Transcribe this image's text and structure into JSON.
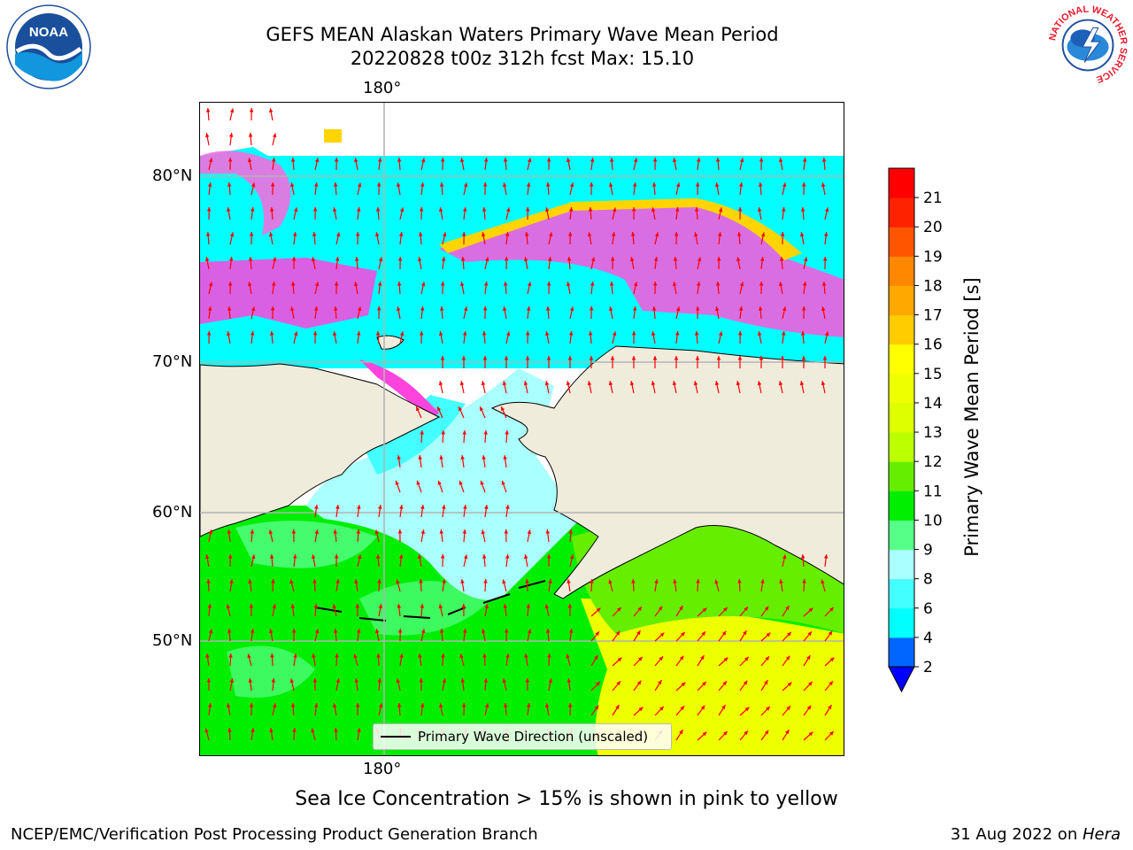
{
  "header": {
    "title_line1": "GEFS MEAN Alaskan Waters Primary Wave Mean Period",
    "title_line2": "20220828 t00z 312h fcst   Max: 15.10"
  },
  "map": {
    "lon_label_top": "180°",
    "lon_label_bottom": "180°",
    "lat_labels": [
      "80°N",
      "70°N",
      "60°N",
      "50°N"
    ],
    "legend_label": "Primary Wave Direction (unscaled)",
    "arrow_color": "#ff0000",
    "land_color": "#efecdc",
    "grid_color": "#b3b3b3"
  },
  "colorbar": {
    "title": "Primary Wave Mean Period [s]",
    "ticks": [
      "2",
      "4",
      "6",
      "8",
      "9",
      "10",
      "11",
      "12",
      "13",
      "14",
      "15",
      "16",
      "17",
      "18",
      "19",
      "20",
      "21"
    ],
    "colors": [
      "#0066ff",
      "#00ffff",
      "#44ffff",
      "#aaffff",
      "#55ff88",
      "#00ee00",
      "#66ee00",
      "#bbff00",
      "#ddff00",
      "#eeff00",
      "#ffff00",
      "#ffcc00",
      "#ffa800",
      "#ff8800",
      "#ff5500",
      "#ff2200",
      "#ff0000"
    ],
    "extend_color": "#0000ff"
  },
  "footer": {
    "note": "Sea Ice Concentration > 15% is shown in pink to yellow",
    "credit": "NCEP/EMC/Verification Post Processing Product Generation Branch",
    "date": "31 Aug 2022 on ",
    "machine": "Hera"
  },
  "logos": {
    "noaa_text": "NOAA",
    "nws_text": "NATIONAL WEATHER SERVICE"
  }
}
